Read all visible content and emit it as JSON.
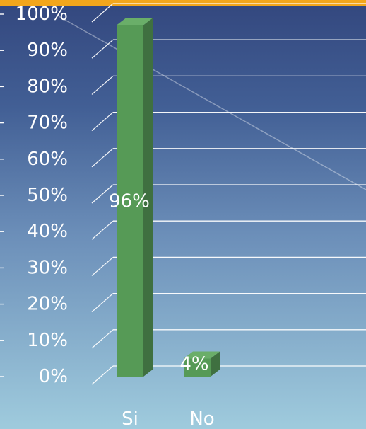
{
  "chart_data": {
    "type": "bar",
    "categories": [
      "Si",
      "No"
    ],
    "values": [
      96,
      4
    ],
    "data_labels": [
      "96%",
      "4%"
    ],
    "y_ticks": [
      "0%",
      "10%",
      "20%",
      "30%",
      "40%",
      "50%",
      "60%",
      "70%",
      "80%",
      "90%",
      "100%"
    ],
    "ylim": [
      0,
      100
    ],
    "grid": true,
    "bar_color": "#569a56",
    "bar_side_color": "#3f7040",
    "bar_top_color": "#6aae69"
  }
}
